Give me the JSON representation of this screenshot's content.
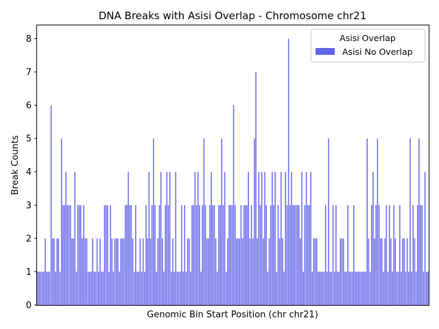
{
  "chart_data": {
    "type": "bar",
    "title": "DNA Breaks with Asisi Overlap - Chromosome chr21",
    "xlabel": "Genomic Bin Start Position (chr chr21)",
    "ylabel": "Break Counts",
    "ylim": [
      0,
      8.4
    ],
    "yticks": [
      0,
      1,
      2,
      3,
      4,
      5,
      6,
      7,
      8
    ],
    "xticks_visible": false,
    "grid": false,
    "legend": {
      "title": "Asisi Overlap",
      "placement": "top-right",
      "entries": [
        {
          "name": "Asisi No Overlap",
          "color": "#6464e8"
        }
      ]
    },
    "series": [
      {
        "name": "Asisi No Overlap",
        "color": "#6464e8",
        "values": [
          1,
          1,
          1,
          1,
          1,
          2,
          1,
          1,
          1,
          6,
          2,
          2,
          1,
          2,
          2,
          1,
          5,
          3,
          3,
          4,
          3,
          3,
          3,
          2,
          2,
          4,
          1,
          3,
          3,
          3,
          2,
          3,
          2,
          2,
          1,
          1,
          1,
          2,
          1,
          1,
          2,
          1,
          2,
          1,
          1,
          3,
          3,
          3,
          1,
          3,
          2,
          1,
          2,
          2,
          2,
          1,
          2,
          2,
          2,
          3,
          3,
          4,
          3,
          3,
          2,
          1,
          3,
          1,
          1,
          2,
          1,
          2,
          1,
          3,
          2,
          4,
          2,
          3,
          5,
          3,
          1,
          2,
          3,
          4,
          2,
          1,
          3,
          4,
          3,
          4,
          1,
          2,
          1,
          4,
          1,
          1,
          1,
          3,
          1,
          3,
          1,
          2,
          2,
          1,
          3,
          3,
          4,
          3,
          4,
          3,
          1,
          3,
          5,
          3,
          2,
          2,
          3,
          4,
          3,
          3,
          2,
          1,
          3,
          3,
          5,
          3,
          4,
          1,
          2,
          3,
          3,
          3,
          6,
          3,
          2,
          2,
          2,
          3,
          2,
          3,
          3,
          3,
          4,
          2,
          3,
          2,
          5,
          7,
          2,
          4,
          3,
          4,
          2,
          4,
          3,
          1,
          2,
          3,
          4,
          3,
          4,
          1,
          3,
          2,
          4,
          2,
          1,
          4,
          3,
          8,
          3,
          4,
          3,
          3,
          3,
          3,
          3,
          2,
          4,
          1,
          3,
          4,
          3,
          3,
          4,
          1,
          2,
          2,
          2,
          1,
          1,
          1,
          1,
          1,
          3,
          1,
          5,
          1,
          1,
          3,
          1,
          3,
          1,
          1,
          2,
          2,
          2,
          1,
          1,
          3,
          1,
          1,
          1,
          3,
          1,
          1,
          1,
          1,
          1,
          1,
          1,
          1,
          5,
          2,
          1,
          3,
          4,
          2,
          3,
          5,
          3,
          2,
          2,
          1,
          2,
          3,
          1,
          3,
          2,
          1,
          3,
          2,
          1,
          1,
          3,
          1,
          2,
          2,
          1,
          2,
          1,
          5,
          1,
          3,
          2,
          1,
          3,
          5,
          3,
          3,
          1,
          4,
          1,
          1
        ]
      }
    ]
  }
}
